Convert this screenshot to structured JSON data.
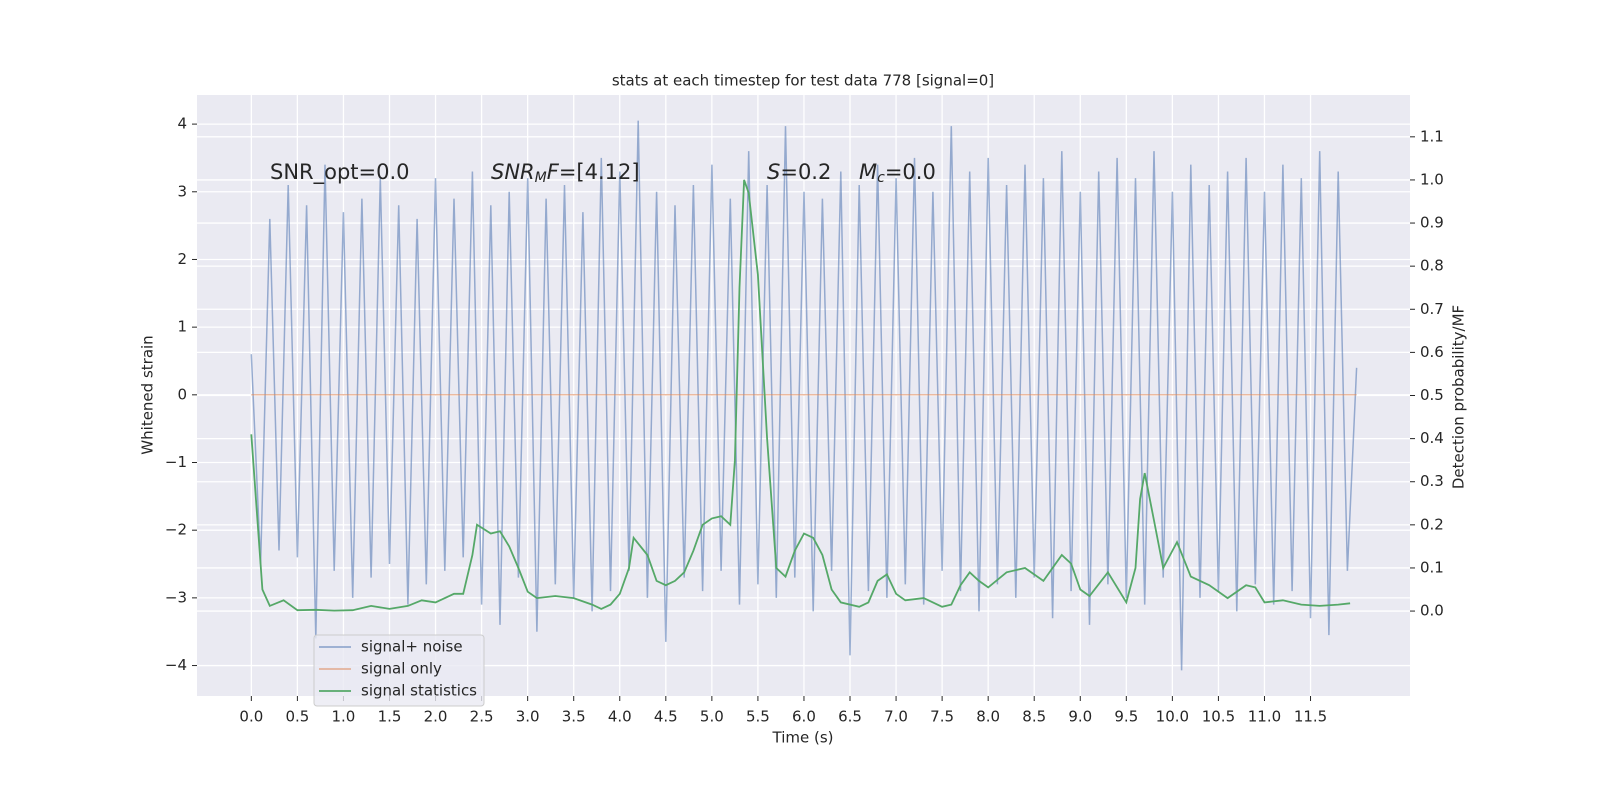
{
  "chart_data": {
    "type": "line",
    "title": "stats at each timestep for test data 778 [signal=0]",
    "xlabel": "Time (s)",
    "ylabel": "Whitened strain",
    "y2label": "Detection probability/MF",
    "xlim": [
      -0.59,
      12.58
    ],
    "ylim": [
      -4.45,
      4.43
    ],
    "y2lim": [
      -0.197,
      1.197
    ],
    "xticks": [
      {
        "value": 0,
        "label": "0.0"
      },
      0.5,
      {
        "value": 1,
        "label": "1.0"
      },
      1.5,
      {
        "value": 2,
        "label": "2.0"
      },
      2.5,
      {
        "value": 3,
        "label": "3.0"
      },
      3.5,
      {
        "value": 4,
        "label": "4.0"
      },
      4.5,
      {
        "value": 5,
        "label": "5.0"
      },
      5.5,
      {
        "value": 6,
        "label": "6.0"
      },
      6.5,
      {
        "value": 7,
        "label": "7.0"
      },
      7.5,
      {
        "value": 8,
        "label": "8.0"
      },
      8.5,
      {
        "value": 9,
        "label": "9.0"
      },
      9.5,
      {
        "value": 10,
        "label": "10.0"
      },
      10.5,
      {
        "value": 11,
        "label": "11.0"
      },
      11.5
    ],
    "yticks": [
      {
        "value": -4,
        "label": "−4"
      },
      {
        "value": -3,
        "label": "−3"
      },
      {
        "value": -2,
        "label": "−2"
      },
      {
        "value": -1,
        "label": "−1"
      },
      0,
      1,
      2,
      3,
      4
    ],
    "y2ticks": [
      {
        "value": 0,
        "label": "0.0"
      },
      0.1,
      0.2,
      0.3,
      0.4,
      0.5,
      0.6,
      0.7,
      0.8,
      0.9,
      {
        "value": 1,
        "label": "1.0"
      },
      1.1
    ],
    "grid": true,
    "legend": "lower left",
    "annotations": [
      [
        {
          "text": "SNR_opt=0.0"
        }
      ],
      [
        {
          "text": "SNR",
          "italic": true
        },
        {
          "text": "M",
          "italic": true,
          "sub": true
        },
        {
          "text": "F",
          "italic": true
        },
        {
          "text": "=[4.12]"
        }
      ],
      [
        {
          "text": "S",
          "italic": true
        },
        {
          "text": "=0.2"
        }
      ],
      [
        {
          "text": "M",
          "italic": true
        },
        {
          "text": "c",
          "italic": true,
          "sub": true
        },
        {
          "text": "=0.0"
        }
      ]
    ],
    "series": [
      {
        "name": "signal+ noise",
        "color": "#4c72b0",
        "x": [
          0,
          0.1,
          0.2,
          0.3,
          0.4,
          0.5,
          0.6,
          0.7,
          0.8,
          0.9,
          1,
          1.1,
          1.2,
          1.3,
          1.4,
          1.5,
          1.6,
          1.7,
          1.8,
          1.9,
          2,
          2.1,
          2.2,
          2.3,
          2.4,
          2.5,
          2.6,
          2.7,
          2.8,
          2.9,
          3,
          3.1,
          3.2,
          3.3,
          3.4,
          3.5,
          3.6,
          3.7,
          3.8,
          3.9,
          4,
          4.1,
          4.2,
          4.3,
          4.4,
          4.5,
          4.6,
          4.7,
          4.8,
          4.9,
          5,
          5.1,
          5.2,
          5.3,
          5.4,
          5.5,
          5.6,
          5.7,
          5.8,
          5.9,
          6,
          6.1,
          6.2,
          6.3,
          6.4,
          6.5,
          6.6,
          6.7,
          6.8,
          6.9,
          7,
          7.1,
          7.2,
          7.3,
          7.4,
          7.5,
          7.6,
          7.7,
          7.8,
          7.9,
          8,
          8.1,
          8.2,
          8.3,
          8.4,
          8.5,
          8.6,
          8.7,
          8.8,
          8.9,
          9,
          9.1,
          9.2,
          9.3,
          9.4,
          9.5,
          9.6,
          9.7,
          9.8,
          9.9,
          10,
          10.1,
          10.2,
          10.3,
          10.4,
          10.5,
          10.6,
          10.7,
          10.8,
          10.9,
          11,
          11.1,
          11.2,
          11.3,
          11.4,
          11.5,
          11.6,
          11.7,
          11.8,
          11.9,
          12
        ],
        "values": [
          0.6,
          -2.5,
          2.6,
          -2.3,
          3.1,
          -2.4,
          2.8,
          -3.6,
          3.4,
          -2.6,
          2.7,
          -3.0,
          2.9,
          -2.7,
          3.2,
          -2.5,
          2.8,
          -3.1,
          2.6,
          -2.8,
          3.2,
          -2.6,
          2.9,
          -2.4,
          3.3,
          -3.1,
          2.8,
          -3.4,
          3.0,
          -2.7,
          3.2,
          -3.5,
          2.9,
          -2.8,
          3.1,
          -3.0,
          2.7,
          -3.2,
          3.5,
          -2.9,
          3.3,
          -2.6,
          4.05,
          -3.0,
          3.0,
          -3.65,
          2.8,
          -2.7,
          3.1,
          -2.9,
          3.4,
          -2.6,
          2.9,
          -3.1,
          3.6,
          -2.8,
          3.1,
          -3.0,
          3.97,
          -2.7,
          3.0,
          -3.2,
          2.9,
          -2.6,
          3.3,
          -3.85,
          3.1,
          -2.9,
          3.4,
          -3.0,
          3.2,
          -2.8,
          3.5,
          -3.1,
          3.0,
          -2.6,
          3.97,
          -2.9,
          3.3,
          -3.2,
          3.5,
          -2.8,
          3.1,
          -3.0,
          3.4,
          -2.7,
          3.2,
          -3.3,
          3.6,
          -2.9,
          3.0,
          -3.4,
          3.3,
          -2.8,
          3.5,
          -3.0,
          3.2,
          -3.1,
          3.6,
          -2.7,
          3.0,
          -4.07,
          3.4,
          -3.0,
          3.1,
          -2.9,
          3.3,
          -3.2,
          3.5,
          -2.8,
          3.0,
          -3.1,
          3.4,
          -2.9,
          3.2,
          -3.3,
          3.6,
          -3.55,
          3.3,
          -2.6,
          0.4
        ]
      },
      {
        "name": "signal only",
        "color": "#dd8452",
        "x": [
          0,
          12
        ],
        "values": [
          0,
          0
        ]
      },
      {
        "name": "signal statistics",
        "color": "#55a868",
        "axis": "y2",
        "x": [
          0,
          0.12,
          0.2,
          0.35,
          0.5,
          0.7,
          0.9,
          1.1,
          1.3,
          1.5,
          1.7,
          1.85,
          2.0,
          2.2,
          2.3,
          2.4,
          2.45,
          2.6,
          2.7,
          2.8,
          2.9,
          3.0,
          3.1,
          3.3,
          3.5,
          3.7,
          3.8,
          3.9,
          4.0,
          4.1,
          4.15,
          4.3,
          4.4,
          4.5,
          4.6,
          4.7,
          4.8,
          4.9,
          5.0,
          5.1,
          5.2,
          5.25,
          5.3,
          5.35,
          5.4,
          5.5,
          5.6,
          5.7,
          5.8,
          5.9,
          6.0,
          6.1,
          6.2,
          6.3,
          6.4,
          6.6,
          6.7,
          6.8,
          6.9,
          7.0,
          7.1,
          7.3,
          7.5,
          7.6,
          7.7,
          7.8,
          7.9,
          8.0,
          8.2,
          8.4,
          8.6,
          8.8,
          8.9,
          9.0,
          9.1,
          9.3,
          9.5,
          9.6,
          9.65,
          9.7,
          9.8,
          9.9,
          10.05,
          10.2,
          10.4,
          10.6,
          10.8,
          10.9,
          11.0,
          11.2,
          11.4,
          11.6,
          11.8,
          11.93
        ],
        "values": [
          0.41,
          0.05,
          0.012,
          0.025,
          0.002,
          0.003,
          0.001,
          0.002,
          0.012,
          0.005,
          0.012,
          0.025,
          0.02,
          0.04,
          0.04,
          0.13,
          0.2,
          0.18,
          0.185,
          0.15,
          0.1,
          0.045,
          0.03,
          0.035,
          0.03,
          0.015,
          0.005,
          0.015,
          0.04,
          0.1,
          0.17,
          0.13,
          0.07,
          0.06,
          0.07,
          0.09,
          0.14,
          0.2,
          0.215,
          0.22,
          0.2,
          0.35,
          0.75,
          1.0,
          0.97,
          0.78,
          0.4,
          0.1,
          0.08,
          0.14,
          0.18,
          0.17,
          0.13,
          0.05,
          0.02,
          0.01,
          0.02,
          0.07,
          0.085,
          0.04,
          0.025,
          0.03,
          0.01,
          0.015,
          0.06,
          0.09,
          0.07,
          0.055,
          0.09,
          0.1,
          0.07,
          0.13,
          0.11,
          0.05,
          0.035,
          0.09,
          0.02,
          0.1,
          0.26,
          0.32,
          0.21,
          0.1,
          0.16,
          0.08,
          0.06,
          0.03,
          0.06,
          0.055,
          0.02,
          0.025,
          0.015,
          0.012,
          0.015,
          0.018
        ]
      }
    ]
  }
}
